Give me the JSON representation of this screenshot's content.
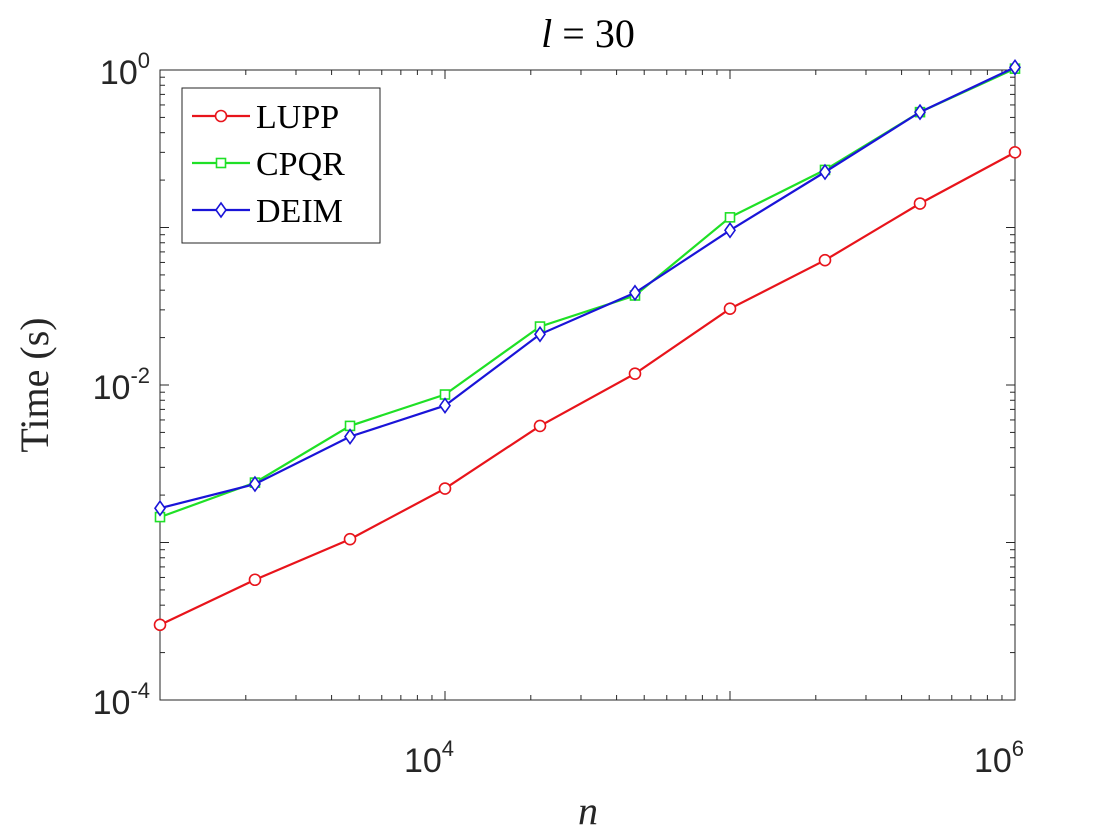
{
  "chart_data": {
    "type": "line",
    "title_var": "l",
    "title_eq": " = 30",
    "xlabel": "n",
    "ylabel": "Time (s)",
    "xscale": "log",
    "yscale": "log",
    "xlim": [
      1000,
      1000000
    ],
    "ylim": [
      0.0001,
      1
    ],
    "x": [
      1000,
      2154,
      4642,
      10000,
      21544,
      46416,
      100000,
      215443,
      464159,
      1000000
    ],
    "xticks": [
      {
        "base": "10",
        "exp": "4",
        "value": 10000
      },
      {
        "base": "10",
        "exp": "6",
        "value": 1000000
      }
    ],
    "yticks": [
      {
        "base": "10",
        "exp": "0",
        "value": 1
      },
      {
        "base": "10",
        "exp": "-2",
        "value": 0.01
      },
      {
        "base": "10",
        "exp": "-4",
        "value": 0.0001
      }
    ],
    "legend_position": "top-left",
    "grid": false,
    "series": [
      {
        "name": "LUPP",
        "color": "#e8141b",
        "marker": "circle",
        "values": [
          0.0003,
          0.00058,
          0.00105,
          0.0022,
          0.0055,
          0.0118,
          0.0305,
          0.062,
          0.142,
          0.3
        ]
      },
      {
        "name": "CPQR",
        "color": "#1fe026",
        "marker": "square",
        "values": [
          0.00145,
          0.0024,
          0.0055,
          0.0087,
          0.0235,
          0.037,
          0.116,
          0.232,
          0.54,
          1.02
        ]
      },
      {
        "name": "DEIM",
        "color": "#1a14d8",
        "marker": "diamond",
        "values": [
          0.00165,
          0.00235,
          0.0047,
          0.0074,
          0.021,
          0.0385,
          0.096,
          0.225,
          0.54,
          1.04
        ]
      }
    ]
  }
}
